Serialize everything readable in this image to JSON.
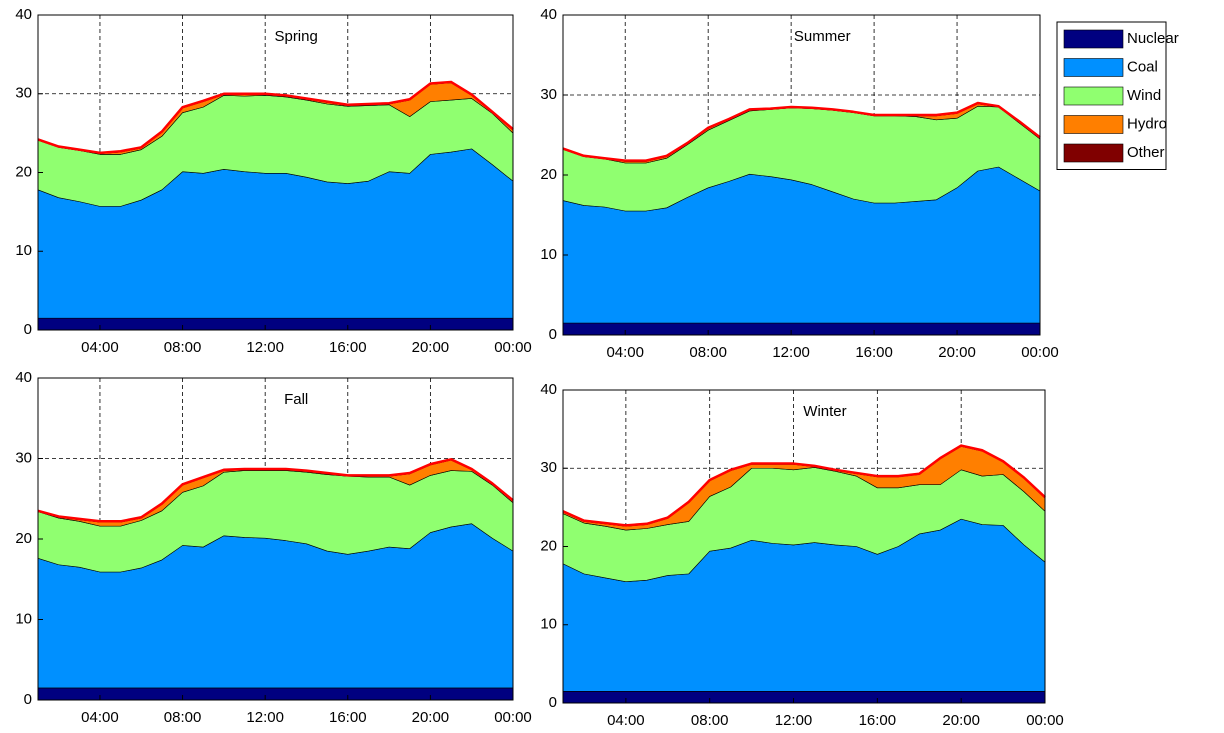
{
  "chart_data": [
    {
      "type": "stacked-area",
      "title": "Spring",
      "x": [
        1,
        2,
        3,
        4,
        5,
        6,
        7,
        8,
        9,
        10,
        11,
        12,
        13,
        14,
        15,
        16,
        17,
        18,
        19,
        20,
        21,
        22,
        23,
        24
      ],
      "xlim": [
        1,
        24
      ],
      "xticks": [
        {
          "value": 4,
          "label": "04:00"
        },
        {
          "value": 8,
          "label": "08:00"
        },
        {
          "value": 12,
          "label": "12:00"
        },
        {
          "value": 16,
          "label": "16:00"
        },
        {
          "value": 20,
          "label": "20:00"
        },
        {
          "value": 24,
          "label": "00:00"
        }
      ],
      "ylim": [
        0,
        40
      ],
      "yticks": [
        0,
        10,
        20,
        30,
        40
      ],
      "grid": true,
      "total_line_color": "#ff0000",
      "series": [
        {
          "name": "Nuclear",
          "color": "#000080",
          "values": [
            1.5,
            1.5,
            1.5,
            1.5,
            1.5,
            1.5,
            1.5,
            1.5,
            1.5,
            1.5,
            1.5,
            1.5,
            1.5,
            1.5,
            1.5,
            1.5,
            1.5,
            1.5,
            1.5,
            1.5,
            1.5,
            1.5,
            1.5,
            1.5
          ]
        },
        {
          "name": "Coal",
          "color": "#0090ff",
          "values": [
            16.3,
            15.3,
            14.8,
            14.2,
            14.2,
            15.0,
            16.3,
            18.6,
            18.4,
            18.9,
            18.6,
            18.4,
            18.4,
            17.9,
            17.3,
            17.1,
            17.4,
            18.6,
            18.4,
            20.8,
            21.1,
            21.5,
            19.5,
            17.4
          ]
        },
        {
          "name": "Wind",
          "color": "#90ff70",
          "values": [
            6.3,
            6.4,
            6.5,
            6.6,
            6.6,
            6.4,
            6.8,
            7.5,
            8.4,
            9.4,
            9.6,
            9.9,
            9.7,
            9.8,
            9.9,
            9.8,
            9.6,
            8.5,
            7.2,
            6.7,
            6.6,
            6.4,
            6.5,
            6.1
          ]
        },
        {
          "name": "Hydro",
          "color": "#ff7f00",
          "values": [
            0,
            0,
            0,
            0.1,
            0.3,
            0.2,
            0.5,
            0.6,
            0.7,
            0.1,
            0.2,
            0.1,
            0.1,
            0.1,
            0.2,
            0.1,
            0.1,
            0.1,
            2.1,
            2.2,
            2.2,
            0.4,
            0.1,
            0.4
          ]
        },
        {
          "name": "Other",
          "color": "#800000",
          "values": [
            0.1,
            0.1,
            0.1,
            0.1,
            0.1,
            0.1,
            0.1,
            0.1,
            0.1,
            0.1,
            0.1,
            0.1,
            0.1,
            0.1,
            0.1,
            0.1,
            0.1,
            0.1,
            0.1,
            0.1,
            0.1,
            0.1,
            0.1,
            0.1
          ]
        }
      ]
    },
    {
      "type": "stacked-area",
      "title": "Summer",
      "x": [
        1,
        2,
        3,
        4,
        5,
        6,
        7,
        8,
        9,
        10,
        11,
        12,
        13,
        14,
        15,
        16,
        17,
        18,
        19,
        20,
        21,
        22,
        23,
        24
      ],
      "xlim": [
        1,
        24
      ],
      "xticks": [
        {
          "value": 4,
          "label": "04:00"
        },
        {
          "value": 8,
          "label": "08:00"
        },
        {
          "value": 12,
          "label": "12:00"
        },
        {
          "value": 16,
          "label": "16:00"
        },
        {
          "value": 20,
          "label": "20:00"
        },
        {
          "value": 24,
          "label": "00:00"
        }
      ],
      "ylim": [
        0,
        40
      ],
      "yticks": [
        0,
        10,
        20,
        30,
        40
      ],
      "grid": true,
      "total_line_color": "#ff0000",
      "legend": "right",
      "series": [
        {
          "name": "Nuclear",
          "color": "#000080",
          "values": [
            1.5,
            1.5,
            1.5,
            1.5,
            1.5,
            1.5,
            1.5,
            1.5,
            1.5,
            1.5,
            1.5,
            1.5,
            1.5,
            1.5,
            1.5,
            1.5,
            1.5,
            1.5,
            1.5,
            1.5,
            1.5,
            1.5,
            1.5,
            1.5
          ]
        },
        {
          "name": "Coal",
          "color": "#0090ff",
          "values": [
            15.3,
            14.7,
            14.5,
            14.0,
            14.0,
            14.4,
            15.7,
            16.9,
            17.7,
            18.6,
            18.3,
            17.9,
            17.3,
            16.4,
            15.5,
            15.0,
            15.0,
            15.2,
            15.4,
            16.9,
            19.0,
            19.5,
            18.0,
            16.5
          ]
        },
        {
          "name": "Wind",
          "color": "#90ff70",
          "values": [
            6.4,
            6.1,
            6.0,
            6.0,
            6.0,
            6.2,
            6.6,
            7.2,
            7.6,
            7.9,
            8.4,
            9.0,
            9.5,
            10.2,
            10.8,
            10.9,
            10.9,
            10.6,
            10.0,
            8.7,
            8.1,
            7.5,
            7.0,
            6.5
          ]
        },
        {
          "name": "Hydro",
          "color": "#ff7f00",
          "values": [
            0,
            0,
            0,
            0.2,
            0.2,
            0.2,
            0.1,
            0.2,
            0.1,
            0.1,
            0,
            0,
            0,
            0,
            0,
            0,
            0,
            0.1,
            0.5,
            0.6,
            0.3,
            0,
            0.1,
            0.1
          ]
        },
        {
          "name": "Other",
          "color": "#800000",
          "values": [
            0.1,
            0.1,
            0.1,
            0.1,
            0.1,
            0.1,
            0.1,
            0.1,
            0.1,
            0.1,
            0.1,
            0.1,
            0.1,
            0.1,
            0.1,
            0.1,
            0.1,
            0.1,
            0.1,
            0.1,
            0.1,
            0.1,
            0.1,
            0.1
          ]
        }
      ]
    },
    {
      "type": "stacked-area",
      "title": "Fall",
      "x": [
        1,
        2,
        3,
        4,
        5,
        6,
        7,
        8,
        9,
        10,
        11,
        12,
        13,
        14,
        15,
        16,
        17,
        18,
        19,
        20,
        21,
        22,
        23,
        24
      ],
      "xlim": [
        1,
        24
      ],
      "xticks": [
        {
          "value": 4,
          "label": "04:00"
        },
        {
          "value": 8,
          "label": "08:00"
        },
        {
          "value": 12,
          "label": "12:00"
        },
        {
          "value": 16,
          "label": "16:00"
        },
        {
          "value": 20,
          "label": "20:00"
        },
        {
          "value": 24,
          "label": "00:00"
        }
      ],
      "ylim": [
        0,
        40
      ],
      "yticks": [
        0,
        10,
        20,
        30,
        40
      ],
      "grid": true,
      "total_line_color": "#ff0000",
      "series": [
        {
          "name": "Nuclear",
          "color": "#000080",
          "values": [
            1.5,
            1.5,
            1.5,
            1.5,
            1.5,
            1.5,
            1.5,
            1.5,
            1.5,
            1.5,
            1.5,
            1.5,
            1.5,
            1.5,
            1.5,
            1.5,
            1.5,
            1.5,
            1.5,
            1.5,
            1.5,
            1.5,
            1.5,
            1.5
          ]
        },
        {
          "name": "Coal",
          "color": "#0090ff",
          "values": [
            16.1,
            15.3,
            15.0,
            14.4,
            14.4,
            14.9,
            15.9,
            17.7,
            17.5,
            18.9,
            18.7,
            18.6,
            18.3,
            17.9,
            17.0,
            16.6,
            17.0,
            17.5,
            17.3,
            19.3,
            20.0,
            20.4,
            18.6,
            17.0
          ]
        },
        {
          "name": "Wind",
          "color": "#90ff70",
          "values": [
            5.8,
            5.8,
            5.7,
            5.7,
            5.7,
            5.9,
            6.1,
            6.6,
            7.6,
            7.9,
            8.3,
            8.4,
            8.7,
            8.9,
            9.5,
            9.7,
            9.2,
            8.7,
            7.9,
            7.1,
            7.0,
            6.5,
            6.6,
            6.0
          ]
        },
        {
          "name": "Hydro",
          "color": "#ff7f00",
          "values": [
            0,
            0.1,
            0.2,
            0.5,
            0.5,
            0.3,
            0.8,
            0.9,
            1.0,
            0.2,
            0.1,
            0.1,
            0.1,
            0.1,
            0.1,
            0,
            0.1,
            0.1,
            1.4,
            1.3,
            1.3,
            0.2,
            0.1,
            0.2
          ]
        },
        {
          "name": "Other",
          "color": "#800000",
          "values": [
            0.1,
            0.1,
            0.1,
            0.1,
            0.1,
            0.1,
            0.1,
            0.1,
            0.1,
            0.1,
            0.1,
            0.1,
            0.1,
            0.1,
            0.1,
            0.1,
            0.1,
            0.1,
            0.1,
            0.1,
            0.1,
            0.1,
            0.1,
            0.1
          ]
        }
      ]
    },
    {
      "type": "stacked-area",
      "title": "Winter",
      "x": [
        1,
        2,
        3,
        4,
        5,
        6,
        7,
        8,
        9,
        10,
        11,
        12,
        13,
        14,
        15,
        16,
        17,
        18,
        19,
        20,
        21,
        22,
        23,
        24
      ],
      "xlim": [
        1,
        24
      ],
      "xticks": [
        {
          "value": 4,
          "label": "04:00"
        },
        {
          "value": 8,
          "label": "08:00"
        },
        {
          "value": 12,
          "label": "12:00"
        },
        {
          "value": 16,
          "label": "16:00"
        },
        {
          "value": 20,
          "label": "20:00"
        },
        {
          "value": 24,
          "label": "00:00"
        }
      ],
      "ylim": [
        0,
        40
      ],
      "yticks": [
        0,
        10,
        20,
        30,
        40
      ],
      "grid": true,
      "total_line_color": "#ff0000",
      "series": [
        {
          "name": "Nuclear",
          "color": "#000080",
          "values": [
            1.5,
            1.5,
            1.5,
            1.5,
            1.5,
            1.5,
            1.5,
            1.5,
            1.5,
            1.5,
            1.5,
            1.5,
            1.5,
            1.5,
            1.5,
            1.5,
            1.5,
            1.5,
            1.5,
            1.5,
            1.5,
            1.5,
            1.5,
            1.5
          ]
        },
        {
          "name": "Coal",
          "color": "#0090ff",
          "values": [
            16.3,
            15.0,
            14.5,
            14.0,
            14.2,
            14.8,
            15.0,
            17.9,
            18.3,
            19.3,
            18.9,
            18.7,
            19.0,
            18.7,
            18.5,
            17.5,
            18.5,
            20.1,
            20.6,
            22.0,
            21.3,
            21.2,
            18.7,
            16.5
          ]
        },
        {
          "name": "Wind",
          "color": "#90ff70",
          "values": [
            6.4,
            6.5,
            6.6,
            6.6,
            6.6,
            6.5,
            6.7,
            7.0,
            7.8,
            9.2,
            9.6,
            9.6,
            9.6,
            9.4,
            9.0,
            8.5,
            7.5,
            6.3,
            5.8,
            6.3,
            6.2,
            6.5,
            6.8,
            6.5
          ]
        },
        {
          "name": "Hydro",
          "color": "#ff7f00",
          "values": [
            0.2,
            0.2,
            0.3,
            0.5,
            0.5,
            0.8,
            2.4,
            2.0,
            2.1,
            0.5,
            0.5,
            0.7,
            0.1,
            0.1,
            0.3,
            1.4,
            1.4,
            1.3,
            3.3,
            3.0,
            3.2,
            1.6,
            1.7,
            1.7
          ]
        },
        {
          "name": "Other",
          "color": "#800000",
          "values": [
            0.1,
            0.1,
            0.1,
            0.1,
            0.1,
            0.1,
            0.1,
            0.1,
            0.1,
            0.1,
            0.1,
            0.1,
            0.1,
            0.1,
            0.1,
            0.1,
            0.1,
            0.1,
            0.1,
            0.1,
            0.1,
            0.1,
            0.1,
            0.1
          ]
        }
      ]
    }
  ]
}
